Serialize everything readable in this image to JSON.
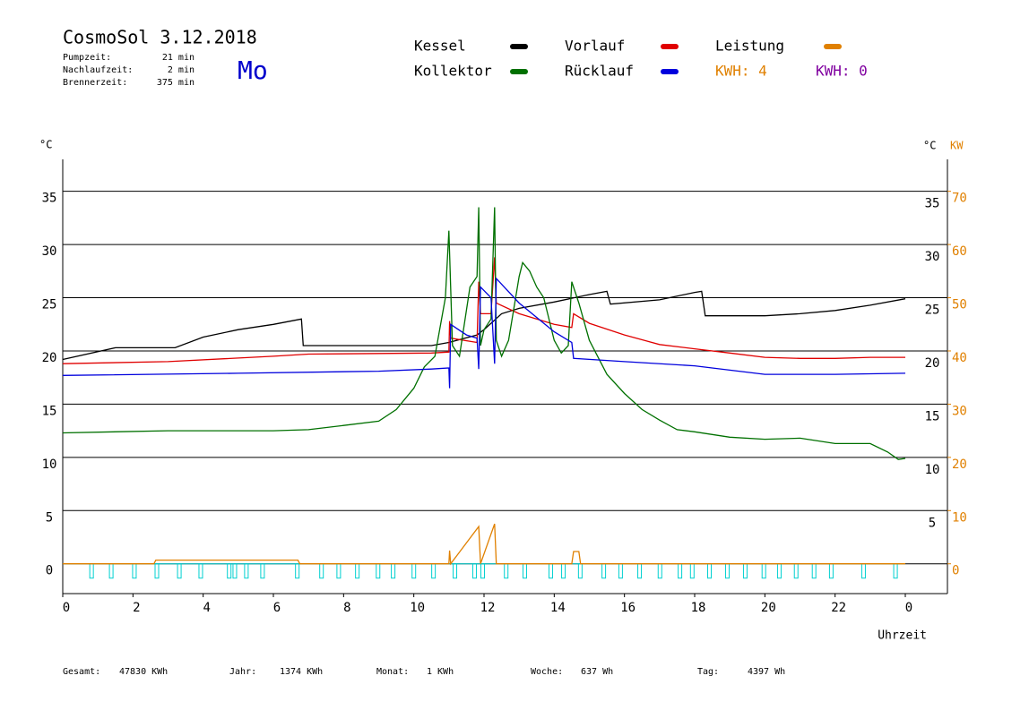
{
  "chart_data": {
    "type": "line",
    "title": "CosmoSol 3.12.2018",
    "info": [
      {
        "label": "Pumpzeit:",
        "value": "21 min"
      },
      {
        "label": "Nachlaufzeit:",
        "value": "2 min"
      },
      {
        "label": "Brennerzeit:",
        "value": "375 min"
      }
    ],
    "weekday": "Mo",
    "y_label": "°C",
    "y2_label_c": "°C",
    "y2_label": "KW",
    "x_label": "Uhrzeit",
    "xlim": [
      0,
      25.2
    ],
    "xticks": [
      0,
      2,
      4,
      6,
      8,
      10,
      12,
      14,
      16,
      18,
      20,
      22,
      {
        "value": 24,
        "label": "0"
      }
    ],
    "ylim": [
      -2.8,
      38
    ],
    "yticks": [
      0,
      5,
      10,
      15,
      20,
      25,
      30,
      35
    ],
    "y2lim": [
      -5.6,
      76
    ],
    "y2ticks": [
      0,
      10,
      20,
      30,
      40,
      50,
      60,
      70
    ],
    "grid": true,
    "series": [
      {
        "name": "Kessel",
        "color": "#000000",
        "x": [
          0,
          1.5,
          3.2,
          4,
          5,
          6,
          6.8,
          6.85,
          10.5,
          11,
          11.8,
          12,
          12.5,
          13,
          14,
          15,
          15.5,
          15.6,
          17,
          18,
          18.2,
          18.3,
          20,
          21,
          22,
          23,
          24
        ],
        "values": [
          19.2,
          20.3,
          20.3,
          21.3,
          22.0,
          22.5,
          23.0,
          20.5,
          20.5,
          20.8,
          21.5,
          22,
          23.5,
          24.0,
          24.6,
          25.3,
          25.6,
          24.4,
          24.8,
          25.5,
          25.6,
          23.3,
          23.3,
          23.5,
          23.8,
          24.3,
          24.9
        ]
      },
      {
        "name": "Vorlauf",
        "color": "#e00000",
        "x": [
          0,
          3,
          6,
          7,
          10.5,
          11,
          11.02,
          11.05,
          11.8,
          11.85,
          11.9,
          12.2,
          12.3,
          12.35,
          13,
          14,
          14.5,
          14.55,
          15,
          16,
          17,
          18,
          19,
          20,
          21,
          22,
          23,
          24
        ],
        "values": [
          18.8,
          19.0,
          19.5,
          19.7,
          19.8,
          19.9,
          22.8,
          21.2,
          20.8,
          26.5,
          23.5,
          23.5,
          28.8,
          24.5,
          23.5,
          22.5,
          22.2,
          23.5,
          22.6,
          21.5,
          20.6,
          20.2,
          19.8,
          19.4,
          19.3,
          19.3,
          19.4,
          19.4
        ]
      },
      {
        "name": "Leistung",
        "color": "#e08000",
        "axis": "y2",
        "x": [
          0,
          2.6,
          2.65,
          6.7,
          6.75,
          11,
          11.02,
          11.05,
          11.85,
          11.9,
          12.3,
          12.35,
          14.5,
          14.55,
          14.7,
          14.75,
          24
        ],
        "values": [
          0,
          0,
          0.7,
          0.7,
          0,
          0,
          2.5,
          0,
          7,
          0,
          7.5,
          0,
          0,
          2.3,
          2.3,
          0,
          0
        ]
      },
      {
        "name": "Kollektor",
        "color": "#007000",
        "x": [
          0,
          3,
          6,
          7,
          8,
          9,
          9.5,
          10,
          10.3,
          10.6,
          10.9,
          11,
          11.1,
          11.3,
          11.6,
          11.8,
          11.85,
          11.9,
          12,
          12.2,
          12.3,
          12.35,
          12.5,
          12.7,
          13,
          13.1,
          13.3,
          13.5,
          13.7,
          14,
          14.2,
          14.4,
          14.5,
          14.7,
          15,
          15.5,
          16,
          16.5,
          17,
          17.5,
          18,
          19,
          20,
          21,
          22,
          23,
          23.5,
          23.8,
          24
        ],
        "values": [
          12.3,
          12.5,
          12.5,
          12.6,
          13.0,
          13.4,
          14.5,
          16.5,
          18.5,
          19.5,
          25,
          31.3,
          20.5,
          19.5,
          26,
          27,
          33.5,
          20.5,
          22,
          23,
          33.5,
          21,
          19.5,
          21,
          27,
          28.3,
          27.5,
          26,
          25,
          21,
          19.8,
          20.5,
          26.5,
          24.5,
          21,
          17.8,
          16,
          14.5,
          13.5,
          12.6,
          12.4,
          11.9,
          11.7,
          11.8,
          11.3,
          11.3,
          10.5,
          9.8,
          9.9
        ]
      },
      {
        "name": "Rücklauf",
        "color": "#0000dd",
        "x": [
          0,
          5,
          9,
          10.5,
          11,
          11.02,
          11.05,
          11.5,
          11.8,
          11.85,
          11.9,
          12.2,
          12.3,
          12.35,
          13,
          14,
          14.5,
          14.55,
          16,
          18,
          20,
          22,
          24
        ],
        "values": [
          17.7,
          17.9,
          18.1,
          18.3,
          18.4,
          16.5,
          22.5,
          21.5,
          21.2,
          18.3,
          26,
          25,
          18.8,
          26.8,
          24.5,
          21.8,
          20.8,
          19.3,
          19.0,
          18.6,
          17.8,
          17.8,
          17.9
        ]
      }
    ],
    "pump_color": "#00d0d0",
    "pump_pulses": [
      0.77,
      1.33,
      1.99,
      2.63,
      3.27,
      3.88,
      4.69,
      4.85,
      5.18,
      5.64,
      6.63,
      7.32,
      7.81,
      8.34,
      8.93,
      9.36,
      9.95,
      10.51,
      11.12,
      11.68,
      11.91,
      12.58,
      13.11,
      13.85,
      14.21,
      14.69,
      15.36,
      15.84,
      16.38,
      16.96,
      17.53,
      17.88,
      18.37,
      18.88,
      19.39,
      19.92,
      20.36,
      20.84,
      21.35,
      21.84,
      22.76,
      23.67
    ],
    "annotations": [
      {
        "text": "KWH: 4",
        "color": "#e08000"
      },
      {
        "text": "KWH: 0",
        "color": "#8000a0"
      }
    ],
    "footer": [
      {
        "label": "Gesamt:",
        "value": "47830 KWh"
      },
      {
        "label": "Jahr:",
        "value": "1374 KWh"
      },
      {
        "label": "Monat:",
        "value": "1 KWh"
      },
      {
        "label": "Woche:",
        "value": "637 Wh"
      },
      {
        "label": "Tag:",
        "value": "4397 Wh"
      }
    ]
  }
}
